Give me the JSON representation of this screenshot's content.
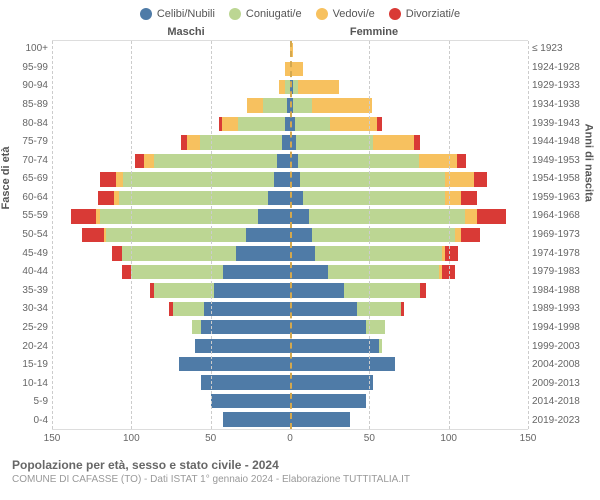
{
  "legend": [
    {
      "label": "Celibi/Nubili",
      "color": "#4f7ba7"
    },
    {
      "label": "Coniugati/e",
      "color": "#bcd693"
    },
    {
      "label": "Vedovi/e",
      "color": "#f7c15f"
    },
    {
      "label": "Divorziati/e",
      "color": "#d93a36"
    }
  ],
  "headers": {
    "left": "Maschi",
    "right": "Femmine"
  },
  "yaxis_left_title": "Fasce di età",
  "yaxis_right_title": "Anni di nascita",
  "age_labels": [
    "100+",
    "95-99",
    "90-94",
    "85-89",
    "80-84",
    "75-79",
    "70-74",
    "65-69",
    "60-64",
    "55-59",
    "50-54",
    "45-49",
    "40-44",
    "35-39",
    "30-34",
    "25-29",
    "20-24",
    "15-19",
    "10-14",
    "5-9",
    "0-4"
  ],
  "birth_labels": [
    "≤ 1923",
    "1924-1928",
    "1929-1933",
    "1934-1938",
    "1939-1943",
    "1944-1948",
    "1949-1953",
    "1954-1958",
    "1959-1963",
    "1964-1968",
    "1969-1973",
    "1974-1978",
    "1979-1983",
    "1984-1988",
    "1989-1993",
    "1994-1998",
    "1999-2003",
    "2004-2008",
    "2009-2013",
    "2014-2018",
    "2019-2023"
  ],
  "xaxis": {
    "max": 150,
    "ticks": [
      150,
      100,
      50,
      0,
      50,
      100,
      150
    ]
  },
  "colors": {
    "cel": "#4f7ba7",
    "con": "#bcd693",
    "ved": "#f7c15f",
    "div": "#d93a36",
    "grid": "#cccccc",
    "center": "#d4a84e"
  },
  "rows": [
    {
      "m": {
        "cel": 0,
        "con": 0,
        "ved": 0,
        "div": 0
      },
      "f": {
        "cel": 0,
        "con": 0,
        "ved": 2,
        "div": 0
      }
    },
    {
      "m": {
        "cel": 0,
        "con": 0,
        "ved": 3,
        "div": 0
      },
      "f": {
        "cel": 0,
        "con": 0,
        "ved": 8,
        "div": 0
      }
    },
    {
      "m": {
        "cel": 0,
        "con": 3,
        "ved": 4,
        "div": 0
      },
      "f": {
        "cel": 2,
        "con": 3,
        "ved": 26,
        "div": 0
      }
    },
    {
      "m": {
        "cel": 2,
        "con": 15,
        "ved": 10,
        "div": 0
      },
      "f": {
        "cel": 2,
        "con": 12,
        "ved": 38,
        "div": 0
      }
    },
    {
      "m": {
        "cel": 3,
        "con": 30,
        "ved": 10,
        "div": 2
      },
      "f": {
        "cel": 3,
        "con": 22,
        "ved": 30,
        "div": 3
      }
    },
    {
      "m": {
        "cel": 5,
        "con": 52,
        "ved": 8,
        "div": 4
      },
      "f": {
        "cel": 4,
        "con": 48,
        "ved": 26,
        "div": 4
      }
    },
    {
      "m": {
        "cel": 8,
        "con": 78,
        "ved": 6,
        "div": 6
      },
      "f": {
        "cel": 5,
        "con": 76,
        "ved": 24,
        "div": 6
      }
    },
    {
      "m": {
        "cel": 10,
        "con": 95,
        "ved": 5,
        "div": 10
      },
      "f": {
        "cel": 6,
        "con": 92,
        "ved": 18,
        "div": 8
      }
    },
    {
      "m": {
        "cel": 14,
        "con": 94,
        "ved": 3,
        "div": 10
      },
      "f": {
        "cel": 8,
        "con": 90,
        "ved": 10,
        "div": 10
      }
    },
    {
      "m": {
        "cel": 20,
        "con": 100,
        "ved": 2,
        "div": 16
      },
      "f": {
        "cel": 12,
        "con": 98,
        "ved": 8,
        "div": 18
      }
    },
    {
      "m": {
        "cel": 28,
        "con": 88,
        "ved": 1,
        "div": 14
      },
      "f": {
        "cel": 14,
        "con": 90,
        "ved": 4,
        "div": 12
      }
    },
    {
      "m": {
        "cel": 34,
        "con": 72,
        "ved": 0,
        "div": 6
      },
      "f": {
        "cel": 16,
        "con": 80,
        "ved": 2,
        "div": 8
      }
    },
    {
      "m": {
        "cel": 42,
        "con": 58,
        "ved": 0,
        "div": 6
      },
      "f": {
        "cel": 24,
        "con": 70,
        "ved": 2,
        "div": 8
      }
    },
    {
      "m": {
        "cel": 48,
        "con": 38,
        "ved": 0,
        "div": 2
      },
      "f": {
        "cel": 34,
        "con": 48,
        "ved": 0,
        "div": 4
      }
    },
    {
      "m": {
        "cel": 54,
        "con": 20,
        "ved": 0,
        "div": 2
      },
      "f": {
        "cel": 42,
        "con": 28,
        "ved": 0,
        "div": 2
      }
    },
    {
      "m": {
        "cel": 56,
        "con": 6,
        "ved": 0,
        "div": 0
      },
      "f": {
        "cel": 48,
        "con": 12,
        "ved": 0,
        "div": 0
      }
    },
    {
      "m": {
        "cel": 60,
        "con": 0,
        "ved": 0,
        "div": 0
      },
      "f": {
        "cel": 56,
        "con": 2,
        "ved": 0,
        "div": 0
      }
    },
    {
      "m": {
        "cel": 70,
        "con": 0,
        "ved": 0,
        "div": 0
      },
      "f": {
        "cel": 66,
        "con": 0,
        "ved": 0,
        "div": 0
      }
    },
    {
      "m": {
        "cel": 56,
        "con": 0,
        "ved": 0,
        "div": 0
      },
      "f": {
        "cel": 52,
        "con": 0,
        "ved": 0,
        "div": 0
      }
    },
    {
      "m": {
        "cel": 50,
        "con": 0,
        "ved": 0,
        "div": 0
      },
      "f": {
        "cel": 48,
        "con": 0,
        "ved": 0,
        "div": 0
      }
    },
    {
      "m": {
        "cel": 42,
        "con": 0,
        "ved": 0,
        "div": 0
      },
      "f": {
        "cel": 38,
        "con": 0,
        "ved": 0,
        "div": 0
      }
    }
  ],
  "footer": {
    "title": "Popolazione per età, sesso e stato civile - 2024",
    "subtitle": "COMUNE DI CAFASSE (TO) - Dati ISTAT 1° gennaio 2024 - Elaborazione TUTTITALIA.IT"
  }
}
